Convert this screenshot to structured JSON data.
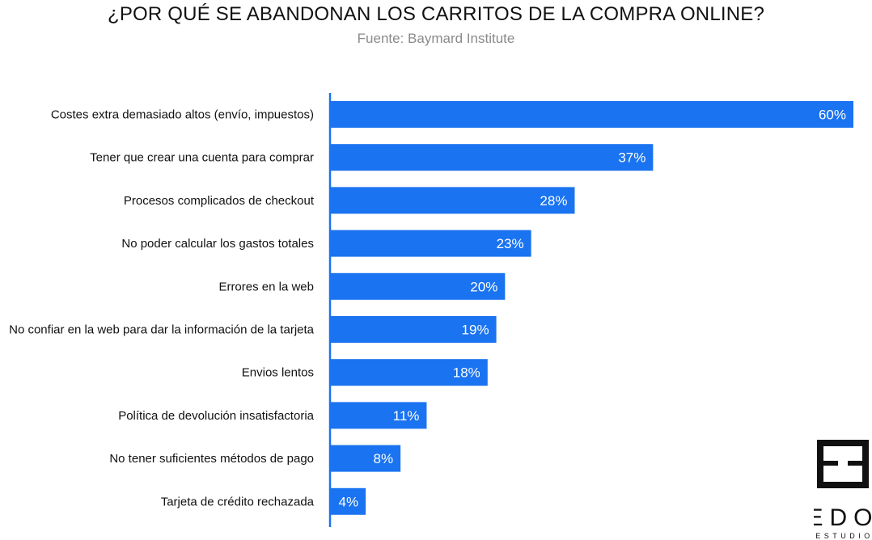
{
  "header": {
    "title": "¿POR QUÉ SE ABANDONAN LOS CARRITOS DE LA COMPRA ONLINE?",
    "subtitle": "Fuente: Baymard Institute"
  },
  "logo": {
    "main": "EDO",
    "sub": "ESTUDIO"
  },
  "colors": {
    "bar": "#1a73f0",
    "axis": "#1a73f0",
    "label_text": "#111111",
    "value_text": "#ffffff"
  },
  "chart_data": {
    "type": "bar",
    "orientation": "horizontal",
    "title": "¿POR QUÉ SE ABANDONAN LOS CARRITOS DE LA COMPRA ONLINE?",
    "subtitle": "Fuente: Baymard Institute",
    "categories": [
      "Costes extra demasiado altos (envío, impuestos)",
      "Tener que crear una cuenta para comprar",
      "Procesos complicados de checkout",
      "No poder calcular los gastos totales",
      "Errores en la web",
      "No confiar en la web para dar la información de la tarjeta",
      "Envios lentos",
      "Política de devolución insatisfactoria",
      "No tener suficientes métodos de pago",
      "Tarjeta de crédito rechazada"
    ],
    "values": [
      60,
      37,
      28,
      23,
      20,
      19,
      18,
      11,
      8,
      4
    ],
    "value_labels": [
      "60%",
      "37%",
      "28%",
      "23%",
      "20%",
      "19%",
      "18%",
      "11%",
      "8%",
      "4%"
    ],
    "unit": "%",
    "xlim": [
      0,
      60
    ],
    "grid": false,
    "legend": "none"
  }
}
